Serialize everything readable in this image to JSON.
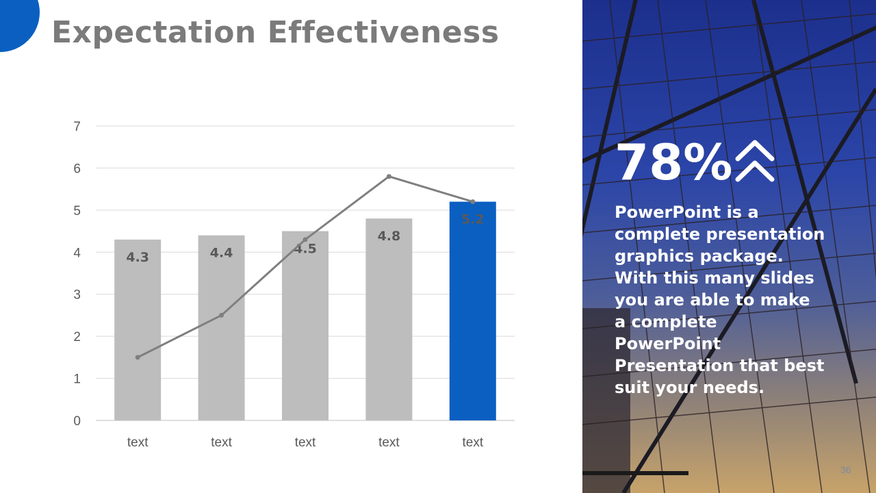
{
  "title": "Expectation Effectiveness",
  "highlight": {
    "value": "78%",
    "icon": "double-chevron-up-icon"
  },
  "description": "PowerPoint is a complete presentation graphics package. With this many slides you are able to make a complete PowerPoint Presentation that best suit your needs.",
  "page_number": "36",
  "colors": {
    "accent": "#0a5fc1",
    "bar": "#bdbdbd",
    "line": "#7f7f7f",
    "title": "#7b7b7b",
    "grid": "#d9d9d9"
  },
  "chart_data": {
    "type": "bar",
    "title": "",
    "xlabel": "",
    "ylabel": "",
    "ylim": [
      0,
      7
    ],
    "yticks": [
      0,
      1,
      2,
      3,
      4,
      5,
      6,
      7
    ],
    "categories": [
      "text",
      "text",
      "text",
      "text",
      "text"
    ],
    "series": [
      {
        "name": "bars",
        "type": "bar",
        "values": [
          4.3,
          4.4,
          4.5,
          4.8,
          5.2
        ],
        "data_labels": [
          "4.3",
          "4.4",
          "4.5",
          "4.8",
          "5.2"
        ],
        "highlight_index": 4
      },
      {
        "name": "line",
        "type": "line",
        "values": [
          1.5,
          2.5,
          4.3,
          5.8,
          5.2
        ]
      }
    ],
    "grid": true,
    "legend": "none"
  }
}
